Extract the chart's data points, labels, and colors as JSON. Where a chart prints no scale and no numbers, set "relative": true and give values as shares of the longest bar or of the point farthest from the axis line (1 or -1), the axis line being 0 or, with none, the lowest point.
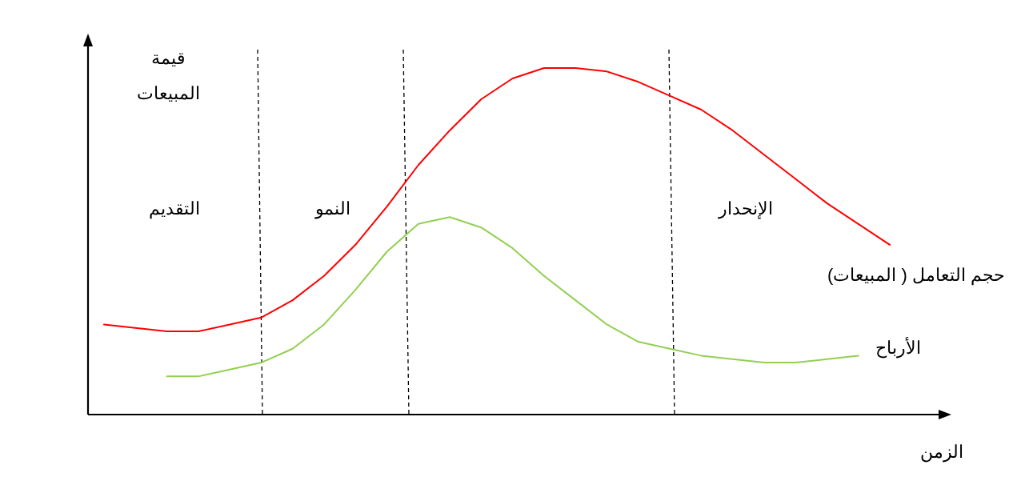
{
  "chart_data": {
    "type": "line",
    "relative": true,
    "xlabel": "الزمن",
    "ylabel": "قيمة المبيعات",
    "categories": [
      null,
      null,
      null,
      null,
      null,
      null,
      null,
      null,
      null,
      null,
      null,
      null,
      null,
      null,
      null,
      null,
      null,
      null,
      null,
      null,
      null,
      null,
      null,
      null,
      null,
      null
    ],
    "series": [
      {
        "name": "حجم التعامل ( المبيعات)",
        "color": "#ff0000",
        "values": [
          0.26,
          0.25,
          0.24,
          0.24,
          0.26,
          0.28,
          0.33,
          0.4,
          0.49,
          0.6,
          0.72,
          0.82,
          0.91,
          0.97,
          1.0,
          1.0,
          0.99,
          0.96,
          0.92,
          0.88,
          0.82,
          0.75,
          0.68,
          0.61,
          0.55,
          0.49
        ]
      },
      {
        "name": "الأرباح",
        "color": "#92d050",
        "values": [
          null,
          null,
          0.11,
          0.11,
          0.13,
          0.15,
          0.19,
          0.26,
          0.36,
          0.47,
          0.55,
          0.57,
          0.54,
          0.48,
          0.4,
          0.33,
          0.26,
          0.21,
          0.19,
          0.17,
          0.16,
          0.15,
          0.15,
          0.16,
          0.17,
          null
        ]
      }
    ],
    "annotations": [
      "التقديم",
      "النمو",
      "الإنحدار"
    ]
  }
}
